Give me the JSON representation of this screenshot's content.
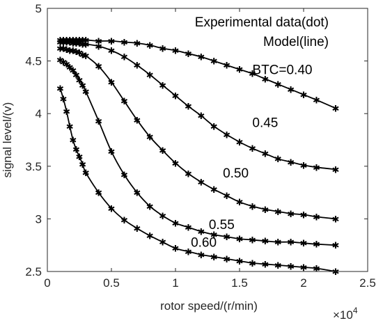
{
  "chart_data": {
    "type": "line",
    "xlabel": "rotor speed/(r/min)",
    "ylabel": "signal level/(v)",
    "x_multiplier": "×10",
    "x_multiplier_exp": "4",
    "xlim": [
      0,
      25000
    ],
    "ylim": [
      2.5,
      5
    ],
    "x_ticks": [
      0,
      5000,
      10000,
      15000,
      20000,
      25000
    ],
    "x_tick_labels": [
      "0",
      "0.5",
      "1",
      "1.5",
      "2",
      "2.5"
    ],
    "y_ticks": [
      2.5,
      3,
      3.5,
      4,
      4.5,
      5
    ],
    "y_tick_labels": [
      "2.5",
      "3",
      "3.5",
      "4",
      "4.5",
      "5"
    ],
    "grid": false,
    "legend_lines": [
      "Experimental data(dot)",
      "Model(line)"
    ],
    "legend_placement": "top-right",
    "marker_glyph": "✱",
    "x": [
      1000,
      1250,
      1500,
      1750,
      2000,
      2250,
      2500,
      2750,
      3000,
      4000,
      5000,
      6000,
      7000,
      8000,
      9000,
      10000,
      11000,
      12000,
      13000,
      14000,
      15000,
      16000,
      17000,
      18000,
      19000,
      20000,
      21000,
      22500
    ],
    "series": [
      {
        "annotation": "BTC=0.40",
        "annotation_x": 16000,
        "annotation_y": 4.42,
        "values": [
          4.7,
          4.7,
          4.7,
          4.7,
          4.7,
          4.7,
          4.7,
          4.7,
          4.7,
          4.69,
          4.69,
          4.68,
          4.67,
          4.65,
          4.62,
          4.6,
          4.57,
          4.54,
          4.5,
          4.46,
          4.42,
          4.38,
          4.33,
          4.28,
          4.23,
          4.18,
          4.13,
          4.05
        ]
      },
      {
        "annotation": "0.45",
        "annotation_x": 16000,
        "annotation_y": 3.92,
        "values": [
          4.68,
          4.68,
          4.68,
          4.68,
          4.67,
          4.67,
          4.67,
          4.66,
          4.66,
          4.64,
          4.6,
          4.54,
          4.46,
          4.37,
          4.27,
          4.17,
          4.07,
          3.98,
          3.88,
          3.8,
          3.73,
          3.67,
          3.62,
          3.57,
          3.54,
          3.51,
          3.49,
          3.47
        ]
      },
      {
        "annotation": "0.50",
        "annotation_x": 13700,
        "annotation_y": 3.44,
        "values": [
          4.62,
          4.62,
          4.61,
          4.6,
          4.6,
          4.59,
          4.58,
          4.56,
          4.55,
          4.45,
          4.3,
          4.12,
          3.94,
          3.78,
          3.65,
          3.53,
          3.43,
          3.35,
          3.28,
          3.22,
          3.16,
          3.12,
          3.09,
          3.07,
          3.05,
          3.04,
          3.02,
          3.0
        ]
      },
      {
        "annotation": "0.55",
        "annotation_x": 12600,
        "annotation_y": 2.95,
        "values": [
          4.51,
          4.49,
          4.47,
          4.44,
          4.41,
          4.37,
          4.32,
          4.27,
          4.21,
          3.93,
          3.64,
          3.42,
          3.25,
          3.12,
          3.03,
          2.96,
          2.92,
          2.88,
          2.85,
          2.83,
          2.81,
          2.8,
          2.79,
          2.78,
          2.78,
          2.77,
          2.76,
          2.75
        ]
      },
      {
        "annotation": "0.60",
        "annotation_x": 11200,
        "annotation_y": 2.78,
        "values": [
          4.24,
          4.14,
          4.02,
          3.88,
          3.75,
          3.66,
          3.59,
          3.52,
          3.44,
          3.25,
          3.1,
          2.99,
          2.91,
          2.84,
          2.78,
          2.72,
          2.69,
          2.66,
          2.64,
          2.62,
          2.6,
          2.58,
          2.57,
          2.56,
          2.55,
          2.54,
          2.53,
          2.5
        ]
      }
    ]
  }
}
